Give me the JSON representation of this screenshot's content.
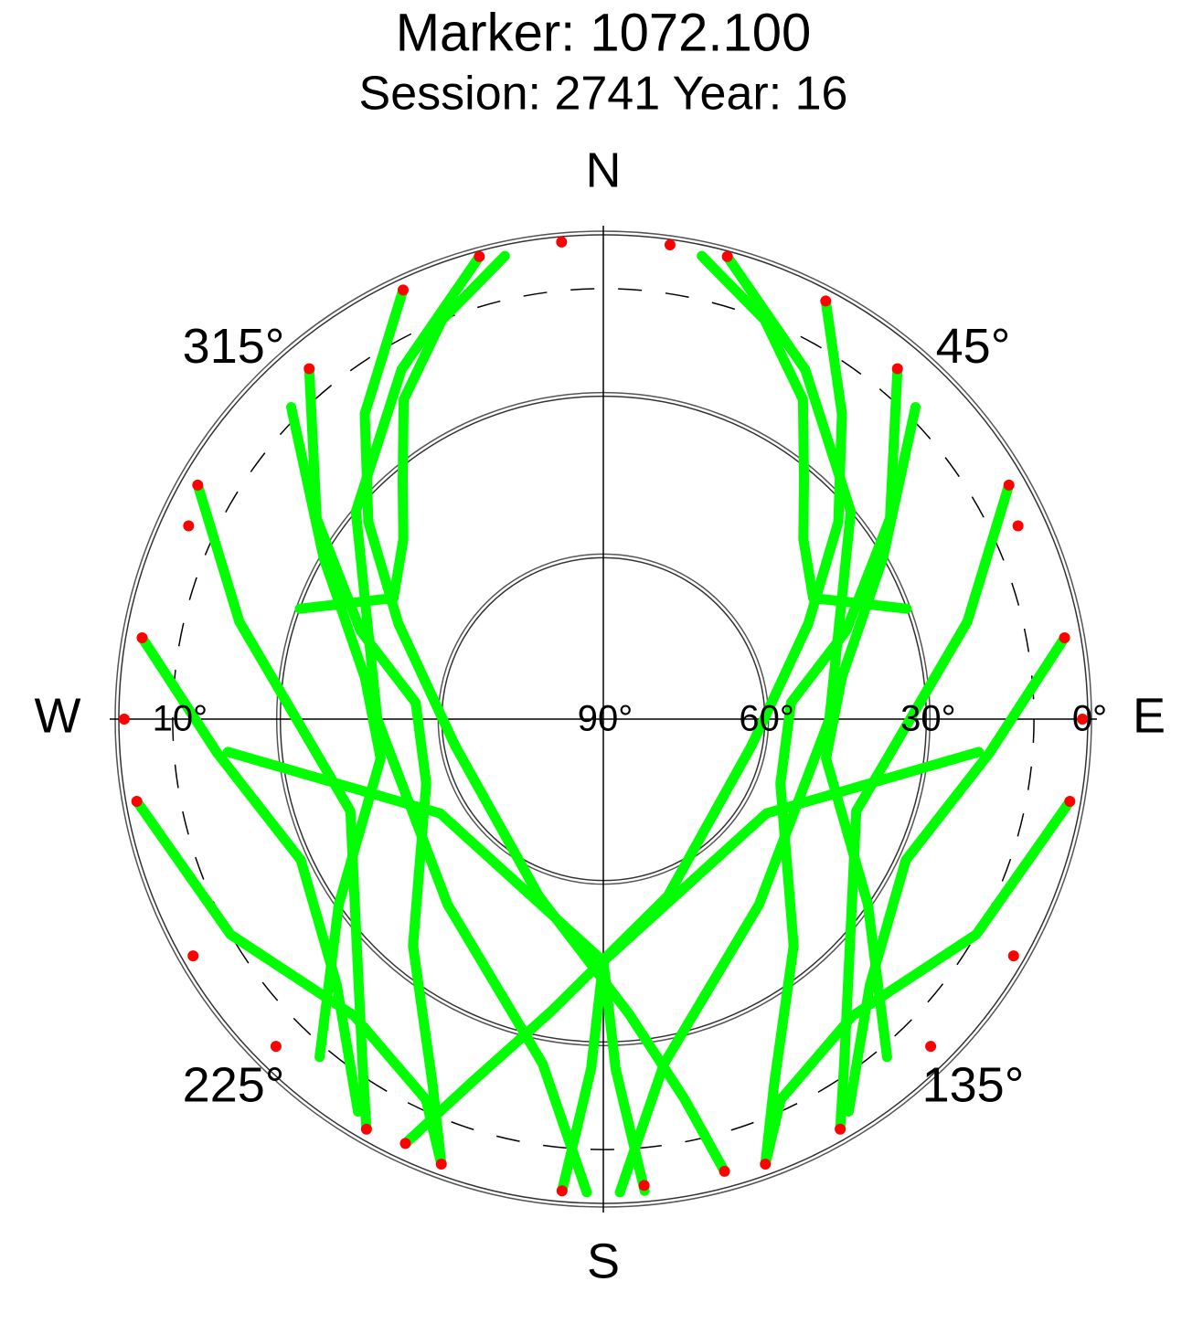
{
  "chart_data": {
    "type": "polar",
    "title": "Marker: 1072.100",
    "subtitle": "Session: 2741 Year: 16",
    "directions": [
      {
        "value": 0,
        "label": "N"
      },
      {
        "value": 90,
        "label": "E"
      },
      {
        "value": 180,
        "label": "S"
      },
      {
        "value": 270,
        "label": "W"
      }
    ],
    "azticks": [
      {
        "value": 45,
        "label": "45°"
      },
      {
        "value": 135,
        "label": "135°"
      },
      {
        "value": 225,
        "label": "225°"
      },
      {
        "value": 315,
        "label": "315°"
      }
    ],
    "rlim": [
      90,
      0
    ],
    "rticks": [
      {
        "value": 90,
        "label": "90°"
      },
      {
        "value": 60,
        "label": "60°"
      },
      {
        "value": 30,
        "label": "30°"
      },
      {
        "value": 0,
        "label": "0°"
      }
    ],
    "mask": {
      "value": 10,
      "label": "10°"
    },
    "track_color": "#00ff00",
    "tracks": [
      {
        "az": [
          28,
          38,
          50,
          65,
          100,
          160,
          190,
          200,
          205
        ],
        "el": [
          2,
          18,
          33,
          48,
          62,
          55,
          35,
          18,
          3
        ]
      },
      {
        "az": [
          335,
          322,
          310,
          295,
          260,
          200,
          175,
          168,
          165
        ],
        "el": [
          2,
          18,
          33,
          48,
          62,
          55,
          35,
          18,
          3
        ]
      },
      {
        "az": [
          40,
          55,
          70,
          85,
          110,
          140,
          155,
          160
        ],
        "el": [
          5,
          25,
          42,
          55,
          55,
          35,
          15,
          2
        ]
      },
      {
        "az": [
          320,
          305,
          290,
          275,
          250,
          220,
          205,
          200
        ],
        "el": [
          5,
          25,
          42,
          55,
          55,
          35,
          15,
          2
        ]
      },
      {
        "az": [
          60,
          75,
          90,
          110,
          130,
          145,
          150
        ],
        "el": [
          3,
          20,
          33,
          40,
          30,
          12,
          2
        ]
      },
      {
        "az": [
          300,
          285,
          270,
          250,
          230,
          215,
          210
        ],
        "el": [
          3,
          20,
          33,
          40,
          30,
          12,
          2
        ]
      },
      {
        "az": [
          45,
          60,
          80,
          100,
          125,
          140
        ],
        "el": [
          8,
          30,
          45,
          48,
          30,
          8
        ]
      },
      {
        "az": [
          315,
          300,
          280,
          260,
          235,
          220
        ],
        "el": [
          8,
          30,
          45,
          48,
          30,
          8
        ]
      },
      {
        "az": [
          80,
          95,
          115,
          135,
          148
        ],
        "el": [
          3,
          18,
          28,
          20,
          4
        ]
      },
      {
        "az": [
          280,
          265,
          245,
          225,
          212
        ],
        "el": [
          3,
          18,
          28,
          20,
          4
        ]
      },
      {
        "az": [
          15,
          30,
          50,
          90,
          140,
          170,
          178
        ],
        "el": [
          1,
          15,
          30,
          48,
          45,
          25,
          2
        ]
      },
      {
        "az": [
          345,
          330,
          310,
          270,
          220,
          190,
          182
        ],
        "el": [
          1,
          15,
          30,
          48,
          45,
          25,
          2
        ]
      },
      {
        "az": [
          100,
          120,
          140,
          155,
          160
        ],
        "el": [
          2,
          10,
          18,
          12,
          2
        ]
      },
      {
        "az": [
          260,
          240,
          220,
          205,
          200
        ],
        "el": [
          2,
          10,
          18,
          12,
          2
        ]
      },
      {
        "az": [
          348,
          338,
          328,
          320,
          312,
          300,
          290
        ],
        "el": [
          2,
          10,
          20,
          32,
          40,
          45,
          30
        ]
      },
      {
        "az": [
          12,
          22,
          32,
          40,
          48,
          60,
          70
        ],
        "el": [
          2,
          10,
          20,
          32,
          40,
          45,
          30
        ]
      },
      {
        "az": [
          185,
          182,
          180,
          120,
          95
        ],
        "el": [
          2,
          25,
          45,
          55,
          20
        ]
      },
      {
        "az": [
          175,
          178,
          180,
          240,
          265
        ],
        "el": [
          2,
          25,
          45,
          55,
          20
        ]
      }
    ],
    "low_color": "#ff0000",
    "low_points": {
      "az": [
        28,
        335,
        40,
        320,
        60,
        300,
        80,
        280,
        15,
        345,
        100,
        260,
        160,
        200,
        150,
        210,
        205,
        165,
        185,
        175,
        90,
        270,
        120,
        240,
        355,
        8,
        65,
        295,
        135,
        225
      ],
      "el": [
        2,
        2,
        5,
        5,
        3,
        3,
        3,
        3,
        1,
        1,
        2,
        2,
        2,
        2,
        2,
        2,
        3,
        3,
        2,
        3,
        1,
        1,
        2,
        2,
        1,
        1,
        5,
        5,
        4,
        4
      ]
    }
  }
}
